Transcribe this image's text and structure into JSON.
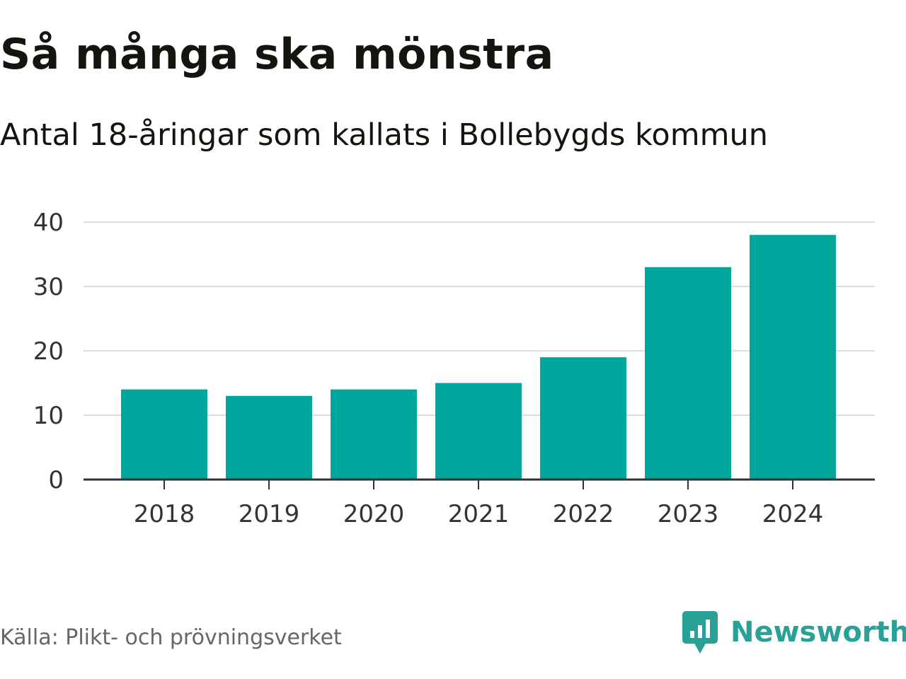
{
  "title": "Så många ska mönstra",
  "subtitle": "Antal 18-åringar som kallats i Bollebygds kommun",
  "source": "Källa: Plikt- och prövningsverket",
  "brand": "Newsworthy",
  "colors": {
    "bar": "#00a59b",
    "grid": "#dddddd",
    "axis": "#333333",
    "brand": "#2aa197"
  },
  "chart_data": {
    "type": "bar",
    "title": "Så många ska mönstra",
    "subtitle": "Antal 18-åringar som kallats i Bollebygds kommun",
    "xlabel": "",
    "ylabel": "",
    "categories": [
      "2018",
      "2019",
      "2020",
      "2021",
      "2022",
      "2023",
      "2024"
    ],
    "values": [
      14,
      13,
      14,
      15,
      19,
      33,
      38
    ],
    "ylim": [
      0,
      40
    ],
    "yticks": [
      0,
      10,
      20,
      30,
      40
    ],
    "grid": true
  }
}
